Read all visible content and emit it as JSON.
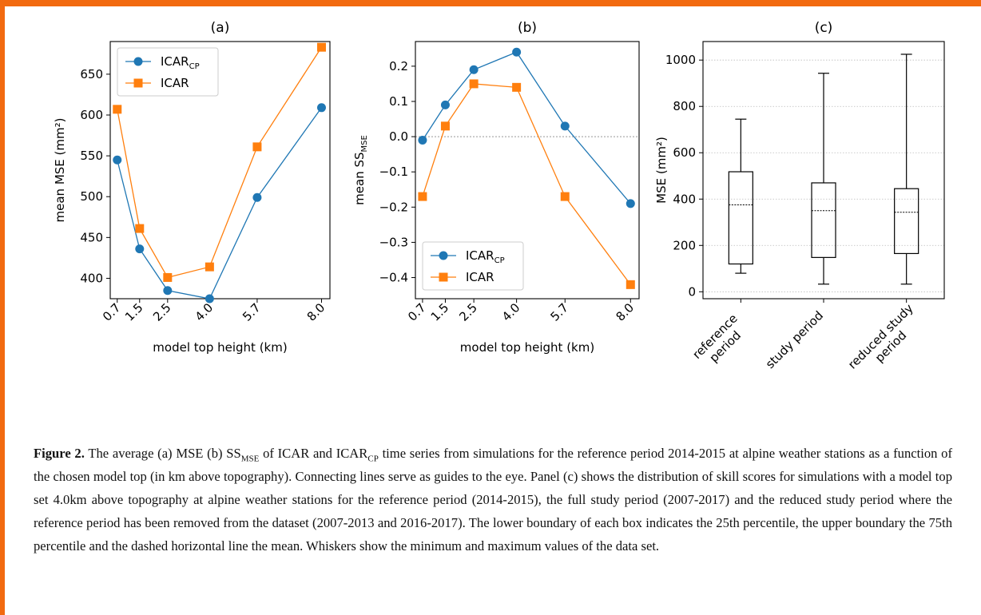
{
  "chart_data": [
    {
      "type": "line",
      "panel": "(a)",
      "xlabel": "model top height (km)",
      "ylabel": "mean MSE (mm²)",
      "categories": [
        "0.7",
        "1.5",
        "2.5",
        "4.0",
        "5.7",
        "8.0"
      ],
      "x": [
        0.7,
        1.5,
        2.5,
        4.0,
        5.7,
        8.0
      ],
      "ylim": [
        375,
        690
      ],
      "yticks": [
        400,
        450,
        500,
        550,
        600,
        650
      ],
      "legend": "upper-left",
      "series": [
        {
          "name": "ICAR",
          "sub": "CP",
          "color": "#1f77b4",
          "marker": "circle",
          "values": [
            545,
            436,
            385,
            375,
            499,
            609
          ]
        },
        {
          "name": "ICAR",
          "sub": "",
          "color": "#ff7f0e",
          "marker": "square",
          "values": [
            607,
            461,
            401,
            414,
            561,
            683
          ]
        }
      ]
    },
    {
      "type": "line",
      "panel": "(b)",
      "xlabel": "model top height (km)",
      "ylabel": "mean SS",
      "ylabel_sub": "MSE",
      "categories": [
        "0.7",
        "1.5",
        "2.5",
        "4.0",
        "5.7",
        "8.0"
      ],
      "x": [
        0.7,
        1.5,
        2.5,
        4.0,
        5.7,
        8.0
      ],
      "ylim": [
        -0.46,
        0.27
      ],
      "yticks": [
        "0.2",
        "0.1",
        "0.0",
        "−0.1",
        "−0.2",
        "−0.3",
        "−0.4"
      ],
      "ytick_values": [
        0.2,
        0.1,
        0.0,
        -0.1,
        -0.2,
        -0.3,
        -0.4
      ],
      "zero_line": true,
      "legend": "lower-left",
      "series": [
        {
          "name": "ICAR",
          "sub": "CP",
          "color": "#1f77b4",
          "marker": "circle",
          "values": [
            -0.01,
            0.09,
            0.19,
            0.24,
            0.03,
            -0.19
          ]
        },
        {
          "name": "ICAR",
          "sub": "",
          "color": "#ff7f0e",
          "marker": "square",
          "values": [
            -0.17,
            0.03,
            0.15,
            0.14,
            -0.17,
            -0.42
          ]
        }
      ]
    },
    {
      "type": "box",
      "panel": "(c)",
      "ylabel": "MSE (mm²)",
      "ylim": [
        -30,
        1080
      ],
      "yticks": [
        0,
        200,
        400,
        600,
        800,
        1000
      ],
      "grid": true,
      "categories": [
        [
          "reference",
          "period"
        ],
        [
          "study period"
        ],
        [
          "reduced study",
          "period"
        ]
      ],
      "boxes": [
        {
          "min": 80,
          "q1": 120,
          "mean": 375,
          "q3": 518,
          "max": 745
        },
        {
          "min": 33,
          "q1": 148,
          "mean": 350,
          "q3": 470,
          "max": 943
        },
        {
          "min": 33,
          "q1": 165,
          "mean": 343,
          "q3": 445,
          "max": 1025
        }
      ]
    }
  ],
  "caption": {
    "label": "Figure 2.",
    "p1": "The average (a) MSE (b) SS",
    "p1_sub": "MSE",
    "p2": "of ICAR and ICAR",
    "p2_sub": "CP",
    "p3": "time series from simulations for the reference period 2014-2015 at alpine weather stations as a function of the chosen model top (in km above topography). Connecting lines serve as guides to the eye. Panel (c) shows the distribution of skill scores for simulations with a model top set 4.0km above topography at alpine weather stations for the reference period (2014-2015), the full study period (2007-2017) and the reduced study period where the reference period has been removed from the dataset (2007-2013 and 2016-2017). The lower boundary of each box indicates the 25th percentile, the upper boundary the 75th percentile and the dashed horizontal line the mean. Whiskers show the minimum and maximum values of the data set."
  }
}
